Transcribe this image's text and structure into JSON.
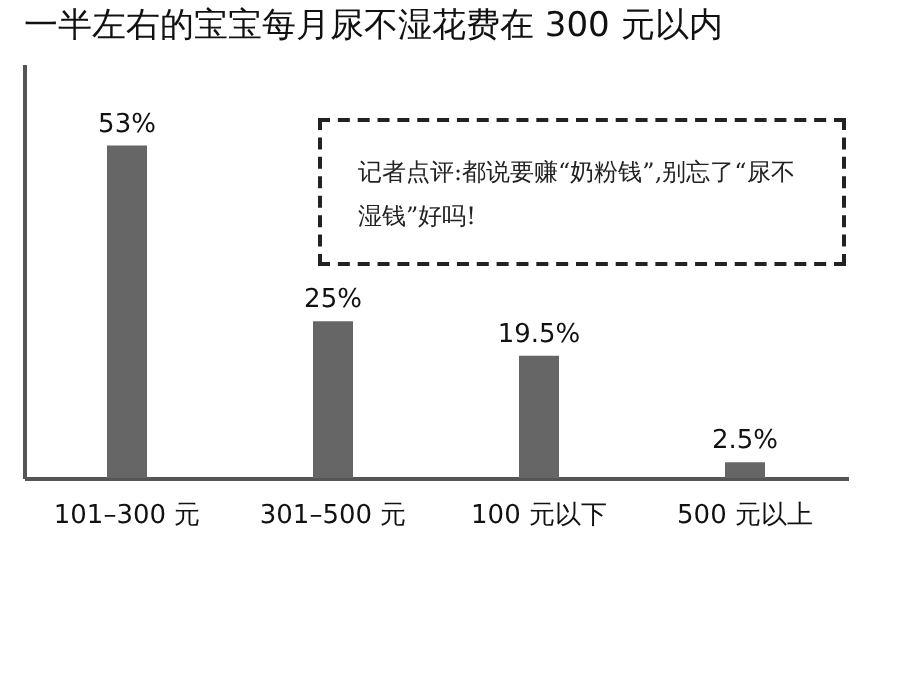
{
  "chart_data": {
    "type": "bar",
    "title": "一半左右的宝宝每月尿不湿花费在 300 元以内",
    "categories": [
      "101–300 元",
      "301–500 元",
      "100 元以下",
      "500 元以上"
    ],
    "values": [
      53,
      25,
      19.5,
      2.5
    ],
    "value_labels": [
      "53%",
      "25%",
      "19.5%",
      "2.5%"
    ],
    "color": "#666666",
    "ylim": [
      0,
      66
    ],
    "grid": false,
    "annotations": [
      "记者点评:都说要赚“奶粉钱”,别忘了“尿不湿钱”好吗!"
    ]
  }
}
